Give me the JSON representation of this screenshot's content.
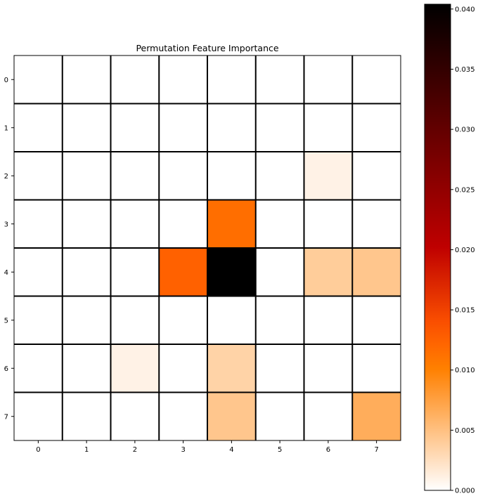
{
  "chart_data": {
    "type": "heatmap",
    "title": "Permutation Feature Importance",
    "xlabel": "",
    "ylabel": "",
    "x_ticks": [
      "0",
      "1",
      "2",
      "3",
      "4",
      "5",
      "6",
      "7"
    ],
    "y_ticks": [
      "0",
      "1",
      "2",
      "3",
      "4",
      "5",
      "6",
      "7"
    ],
    "values": [
      [
        0,
        0,
        0,
        0,
        0,
        0,
        0,
        0
      ],
      [
        0,
        0,
        0,
        0,
        0,
        0,
        0,
        0
      ],
      [
        0,
        0,
        0,
        0,
        0,
        0,
        0.001,
        0
      ],
      [
        0,
        0,
        0,
        0,
        0.0115,
        0,
        0,
        0
      ],
      [
        0,
        0,
        0,
        0.0125,
        0.0404,
        0,
        0.004,
        0.0045
      ],
      [
        0,
        0,
        0,
        0,
        0,
        0,
        0,
        0
      ],
      [
        0,
        0,
        0.001,
        0,
        0.0035,
        0,
        0,
        0
      ],
      [
        0,
        0,
        0,
        0,
        0.0045,
        0,
        0,
        0.0065
      ]
    ],
    "colormap": "gist_heat_r",
    "colorbar": {
      "range": [
        0,
        0.0404
      ],
      "ticks": [
        "0.000",
        "0.005",
        "0.010",
        "0.015",
        "0.020",
        "0.025",
        "0.030",
        "0.035",
        "0.040"
      ]
    },
    "grid": true,
    "grid_color": "#000000"
  }
}
